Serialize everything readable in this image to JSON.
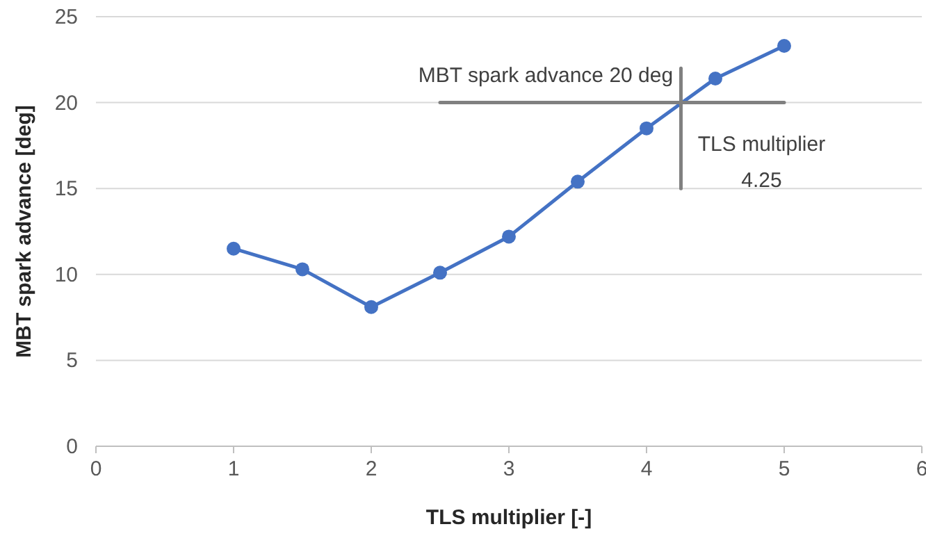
{
  "chart_data": {
    "type": "line",
    "xlabel": "TLS multiplier [-]",
    "ylabel": "MBT spark advance [deg]",
    "x": [
      1,
      1.5,
      2,
      2.5,
      3,
      3.5,
      4,
      4.5,
      5
    ],
    "series": [
      {
        "color": "#4472c4",
        "values": [
          11.5,
          10.3,
          8.1,
          10.1,
          12.2,
          15.4,
          18.5,
          21.4,
          23.3
        ],
        "marker": "circle"
      },
      {
        "color": "#808080",
        "x": [
          2.5,
          5
        ],
        "values": [
          20,
          20
        ],
        "marker": "none"
      },
      {
        "color": "#808080",
        "x": [
          4.25,
          4.25
        ],
        "values": [
          15,
          22
        ],
        "marker": "none"
      }
    ],
    "xlim": [
      0,
      6
    ],
    "xticks": [
      0,
      1,
      2,
      3,
      4,
      5,
      6
    ],
    "ylim": [
      0,
      25
    ],
    "yticks": [
      0,
      5,
      10,
      15,
      20,
      25
    ],
    "grid": "y",
    "annotations": [
      "MBT spark advance 20 deg",
      "TLS multiplier\n4.25"
    ]
  }
}
